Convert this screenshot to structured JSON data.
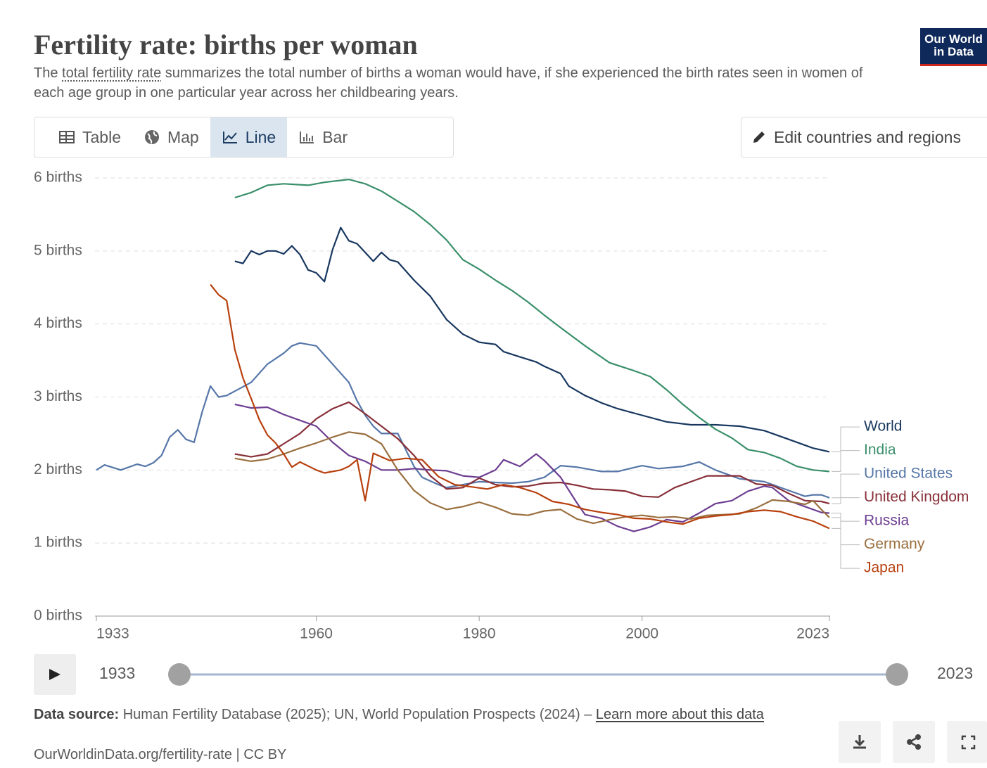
{
  "header": {
    "title": "Fertility rate: births per woman",
    "subtitle": [
      "The ",
      "total fertility rate",
      " summarizes the total number of births a woman would have, if she experienced the birth rates seen in women of each age group in one particular year across her childbearing years."
    ],
    "logo": [
      "Our World",
      "in Data"
    ]
  },
  "tabs": [
    "Table",
    "Map",
    "Line",
    "Bar"
  ],
  "active_tab": 2,
  "edit_button": "Edit countries and regions",
  "timeline": {
    "start": 1933,
    "end": 2023
  },
  "footer": {
    "source_label": "Data source:",
    "source": " Human Fertility Database (2025); UN, World Population Prospects (2024) – ",
    "link": "Learn more about this data",
    "url": "OurWorldinData.org/fertility-rate | CC BY"
  },
  "chart_data": {
    "type": "line",
    "xlim": [
      1933,
      2023
    ],
    "xticks": [
      1933,
      1960,
      1980,
      2000,
      2023
    ],
    "ylim": [
      0,
      6
    ],
    "yticks": [
      {
        "value": 0,
        "label": "0 births"
      },
      {
        "value": 1,
        "label": "1 births"
      },
      {
        "value": 2,
        "label": "2 births"
      },
      {
        "value": 3,
        "label": "3 births"
      },
      {
        "value": 4,
        "label": "4 births"
      },
      {
        "value": 5,
        "label": "5 births"
      },
      {
        "value": 6,
        "label": "6 births"
      }
    ],
    "grid": true,
    "series": [
      {
        "name": "World",
        "color": "#18375f",
        "x": [
          1950,
          1951,
          1952,
          1953,
          1954,
          1955,
          1956,
          1957,
          1958,
          1959,
          1960,
          1961,
          1962,
          1963,
          1964,
          1965,
          1966,
          1967,
          1968,
          1969,
          1970,
          1972,
          1974,
          1976,
          1978,
          1980,
          1982,
          1983,
          1985,
          1987,
          1988,
          1990,
          1991,
          1993,
          1995,
          1997,
          2000,
          2003,
          2006,
          2009,
          2012,
          2015,
          2018,
          2021,
          2023
        ],
        "values": [
          4.86,
          4.83,
          5.0,
          4.95,
          5.0,
          5.0,
          4.96,
          5.07,
          4.95,
          4.74,
          4.7,
          4.58,
          5.02,
          5.32,
          5.14,
          5.1,
          4.98,
          4.86,
          4.98,
          4.88,
          4.85,
          4.6,
          4.38,
          4.06,
          3.86,
          3.75,
          3.72,
          3.62,
          3.55,
          3.48,
          3.42,
          3.32,
          3.15,
          3.02,
          2.92,
          2.84,
          2.75,
          2.66,
          2.62,
          2.62,
          2.6,
          2.54,
          2.42,
          2.3,
          2.25
        ]
      },
      {
        "name": "India",
        "color": "#3a8f6a",
        "x": [
          1950,
          1952,
          1954,
          1956,
          1959,
          1961,
          1964,
          1966,
          1968,
          1970,
          1972,
          1974,
          1976,
          1978,
          1980,
          1982,
          1984,
          1986,
          1988,
          1990,
          1993,
          1996,
          1999,
          2001,
          2003,
          2005,
          2007,
          2009,
          2011,
          2013,
          2015,
          2017,
          2019,
          2021,
          2023
        ],
        "values": [
          5.73,
          5.8,
          5.9,
          5.92,
          5.9,
          5.94,
          5.98,
          5.92,
          5.82,
          5.68,
          5.54,
          5.36,
          5.15,
          4.88,
          4.75,
          4.6,
          4.46,
          4.3,
          4.12,
          3.95,
          3.7,
          3.47,
          3.36,
          3.28,
          3.1,
          2.9,
          2.72,
          2.56,
          2.44,
          2.28,
          2.24,
          2.16,
          2.05,
          2.0,
          1.98
        ]
      },
      {
        "name": "United States",
        "color": "#5576a8",
        "x": [
          1933,
          1934,
          1936,
          1938,
          1939,
          1940,
          1941,
          1942,
          1943,
          1944,
          1945,
          1946,
          1947,
          1948,
          1949,
          1950,
          1952,
          1954,
          1956,
          1957,
          1958,
          1960,
          1962,
          1964,
          1965,
          1966,
          1967,
          1968,
          1970,
          1972,
          1973,
          1975,
          1976,
          1978,
          1980,
          1982,
          1984,
          1986,
          1988,
          1990,
          1992,
          1995,
          1997,
          2000,
          2002,
          2005,
          2007,
          2009,
          2012,
          2015,
          2018,
          2020,
          2021,
          2022,
          2023
        ],
        "values": [
          2.0,
          2.07,
          2.0,
          2.08,
          2.05,
          2.1,
          2.2,
          2.45,
          2.55,
          2.42,
          2.38,
          2.8,
          3.15,
          3.0,
          3.02,
          3.08,
          3.2,
          3.45,
          3.6,
          3.7,
          3.74,
          3.7,
          3.45,
          3.2,
          2.95,
          2.75,
          2.6,
          2.5,
          2.5,
          2.05,
          1.9,
          1.8,
          1.76,
          1.8,
          1.84,
          1.83,
          1.82,
          1.84,
          1.9,
          2.06,
          2.04,
          1.98,
          1.98,
          2.06,
          2.02,
          2.05,
          2.11,
          2.0,
          1.88,
          1.84,
          1.72,
          1.64,
          1.66,
          1.66,
          1.62
        ]
      },
      {
        "name": "United Kingdom",
        "color": "#883039",
        "x": [
          1950,
          1952,
          1954,
          1956,
          1958,
          1960,
          1962,
          1964,
          1966,
          1968,
          1970,
          1972,
          1974,
          1976,
          1978,
          1980,
          1982,
          1984,
          1986,
          1988,
          1990,
          1992,
          1994,
          1996,
          1998,
          2000,
          2002,
          2004,
          2006,
          2008,
          2010,
          2012,
          2014,
          2016,
          2018,
          2020,
          2022,
          2023
        ],
        "values": [
          2.22,
          2.18,
          2.22,
          2.36,
          2.5,
          2.7,
          2.84,
          2.93,
          2.77,
          2.6,
          2.43,
          2.2,
          1.92,
          1.74,
          1.76,
          1.89,
          1.8,
          1.77,
          1.78,
          1.82,
          1.83,
          1.79,
          1.74,
          1.73,
          1.71,
          1.64,
          1.63,
          1.76,
          1.84,
          1.92,
          1.92,
          1.92,
          1.81,
          1.79,
          1.68,
          1.58,
          1.57,
          1.54
        ]
      },
      {
        "name": "Russia",
        "color": "#6d3e91",
        "x": [
          1950,
          1952,
          1954,
          1956,
          1958,
          1960,
          1962,
          1964,
          1966,
          1968,
          1970,
          1972,
          1974,
          1976,
          1978,
          1980,
          1982,
          1983,
          1985,
          1987,
          1988,
          1990,
          1992,
          1993,
          1995,
          1997,
          1999,
          2001,
          2003,
          2005,
          2007,
          2009,
          2011,
          2013,
          2015,
          2016,
          2018,
          2020,
          2022,
          2023
        ],
        "values": [
          2.9,
          2.85,
          2.86,
          2.76,
          2.68,
          2.6,
          2.38,
          2.2,
          2.12,
          2.0,
          2.0,
          2.02,
          2.0,
          1.99,
          1.92,
          1.9,
          2.0,
          2.14,
          2.05,
          2.22,
          2.13,
          1.9,
          1.55,
          1.39,
          1.34,
          1.23,
          1.16,
          1.22,
          1.32,
          1.29,
          1.41,
          1.54,
          1.58,
          1.71,
          1.78,
          1.76,
          1.58,
          1.5,
          1.42,
          1.41
        ]
      },
      {
        "name": "Germany",
        "color": "#9a6f3f",
        "x": [
          1950,
          1952,
          1954,
          1956,
          1958,
          1960,
          1962,
          1964,
          1966,
          1968,
          1970,
          1972,
          1974,
          1976,
          1978,
          1980,
          1982,
          1984,
          1986,
          1988,
          1990,
          1992,
          1994,
          1996,
          1998,
          2000,
          2002,
          2004,
          2006,
          2008,
          2010,
          2012,
          2014,
          2016,
          2018,
          2020,
          2021,
          2022,
          2023
        ],
        "values": [
          2.16,
          2.12,
          2.15,
          2.22,
          2.3,
          2.37,
          2.45,
          2.52,
          2.49,
          2.36,
          2.0,
          1.72,
          1.55,
          1.46,
          1.5,
          1.56,
          1.49,
          1.4,
          1.38,
          1.44,
          1.46,
          1.33,
          1.27,
          1.32,
          1.36,
          1.38,
          1.35,
          1.36,
          1.33,
          1.38,
          1.39,
          1.4,
          1.48,
          1.59,
          1.57,
          1.53,
          1.58,
          1.46,
          1.35
        ]
      },
      {
        "name": "Japan",
        "color": "#b8400e",
        "x": [
          1947,
          1948,
          1949,
          1950,
          1951,
          1952,
          1953,
          1954,
          1955,
          1956,
          1957,
          1958,
          1960,
          1961,
          1963,
          1964,
          1965,
          1966,
          1967,
          1969,
          1971,
          1973,
          1975,
          1977,
          1979,
          1981,
          1983,
          1985,
          1987,
          1989,
          1991,
          1993,
          1995,
          1997,
          1999,
          2001,
          2003,
          2005,
          2007,
          2009,
          2011,
          2013,
          2015,
          2017,
          2019,
          2021,
          2023
        ],
        "values": [
          4.54,
          4.4,
          4.32,
          3.65,
          3.26,
          2.98,
          2.69,
          2.48,
          2.37,
          2.22,
          2.04,
          2.11,
          2.0,
          1.96,
          2.0,
          2.05,
          2.14,
          1.58,
          2.23,
          2.13,
          2.16,
          2.14,
          1.91,
          1.8,
          1.77,
          1.74,
          1.8,
          1.76,
          1.69,
          1.57,
          1.53,
          1.46,
          1.42,
          1.39,
          1.34,
          1.33,
          1.29,
          1.26,
          1.34,
          1.37,
          1.39,
          1.43,
          1.45,
          1.43,
          1.36,
          1.3,
          1.2
        ]
      }
    ]
  }
}
